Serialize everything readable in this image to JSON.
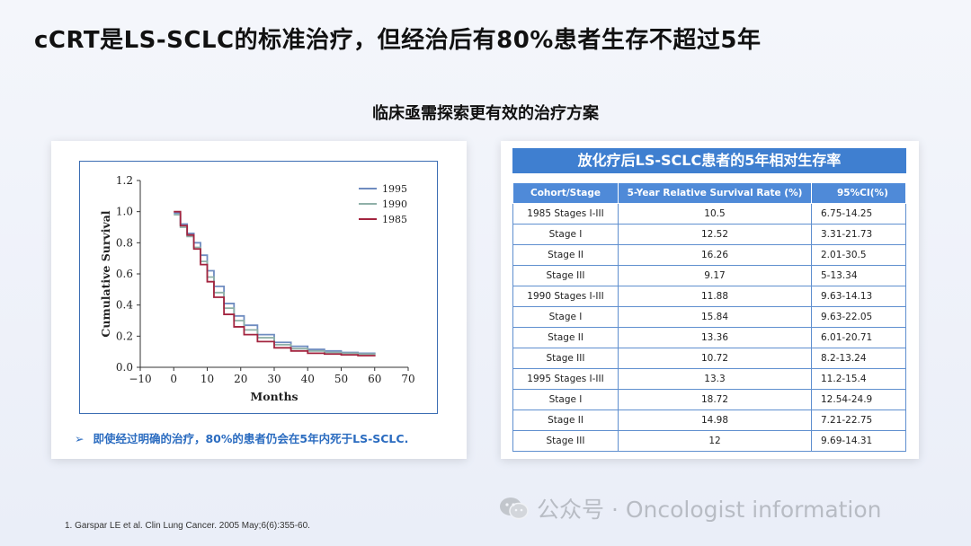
{
  "slide": {
    "title": "cCRT是LS-SCLC的标准治疗，但经治后有80%患者生存不超过5年",
    "subtitle": "临床亟需探索更有效的治疗方案"
  },
  "left_panel": {
    "note_arrow": "➢",
    "note": "即使经过明确的治疗，80%的患者仍会在5年内死于LS-SCLC."
  },
  "chart_data": {
    "type": "line",
    "title": "",
    "xlabel": "Months",
    "ylabel": "Cumulative Survival",
    "xlim": [
      -10,
      70
    ],
    "ylim": [
      0.0,
      1.2
    ],
    "xticks": [
      "-10",
      "0",
      "10",
      "20",
      "30",
      "40",
      "50",
      "60",
      "70"
    ],
    "yticks": [
      "0.0",
      "0.2",
      "0.4",
      "0.6",
      "0.8",
      "1.0",
      "1.2"
    ],
    "legend_position": "top-right",
    "grid": false,
    "series": [
      {
        "name": "1995",
        "color": "#6f8cc0",
        "x": [
          0,
          2,
          4,
          6,
          8,
          10,
          12,
          15,
          18,
          21,
          25,
          30,
          35,
          40,
          45,
          50,
          55,
          60
        ],
        "y": [
          0.99,
          0.92,
          0.86,
          0.8,
          0.72,
          0.62,
          0.52,
          0.41,
          0.33,
          0.27,
          0.21,
          0.16,
          0.135,
          0.115,
          0.105,
          0.095,
          0.09,
          0.085
        ]
      },
      {
        "name": "1990",
        "color": "#8fb0a8",
        "x": [
          0,
          2,
          4,
          6,
          8,
          10,
          12,
          15,
          18,
          21,
          25,
          30,
          35,
          40,
          45,
          50,
          55,
          60
        ],
        "y": [
          0.98,
          0.9,
          0.84,
          0.77,
          0.68,
          0.58,
          0.48,
          0.38,
          0.3,
          0.24,
          0.19,
          0.145,
          0.12,
          0.105,
          0.095,
          0.09,
          0.085,
          0.08
        ]
      },
      {
        "name": "1985",
        "color": "#a3243f",
        "x": [
          0,
          2,
          4,
          6,
          8,
          10,
          12,
          15,
          18,
          21,
          25,
          30,
          35,
          40,
          45,
          50,
          55,
          60
        ],
        "y": [
          1.0,
          0.91,
          0.85,
          0.76,
          0.66,
          0.55,
          0.45,
          0.34,
          0.26,
          0.21,
          0.165,
          0.125,
          0.105,
          0.09,
          0.085,
          0.08,
          0.075,
          0.07
        ]
      }
    ]
  },
  "table": {
    "title": "放化疗后LS-SCLC患者的5年相对生存率",
    "headers": [
      "Cohort/Stage",
      "5-Year Relative Survival Rate (%)",
      "95%CI(%)"
    ],
    "rows": [
      [
        "1985 Stages I-III",
        "10.5",
        "6.75-14.25"
      ],
      [
        "Stage I",
        "12.52",
        "3.31-21.73"
      ],
      [
        "Stage II",
        "16.26",
        "2.01-30.5"
      ],
      [
        "Stage III",
        "9.17",
        "5-13.34"
      ],
      [
        "1990 Stages I-III",
        "11.88",
        "9.63-14.13"
      ],
      [
        "Stage I",
        "15.84",
        "9.63-22.05"
      ],
      [
        "Stage II",
        "13.36",
        "6.01-20.71"
      ],
      [
        "Stage III",
        "10.72",
        "8.2-13.24"
      ],
      [
        "1995 Stages I-III",
        "13.3",
        "11.2-15.4"
      ],
      [
        "Stage I",
        "18.72",
        "12.54-24.9"
      ],
      [
        "Stage II",
        "14.98",
        "7.21-22.75"
      ],
      [
        "Stage III",
        "12",
        "9.69-14.31"
      ]
    ]
  },
  "watermark": {
    "text": "公众号 · Oncologist information",
    "icon": "wechat-icon"
  },
  "reference": "1.    Garspar LE et al. Clin Lung Cancer. 2005 May;6(6):355-60."
}
